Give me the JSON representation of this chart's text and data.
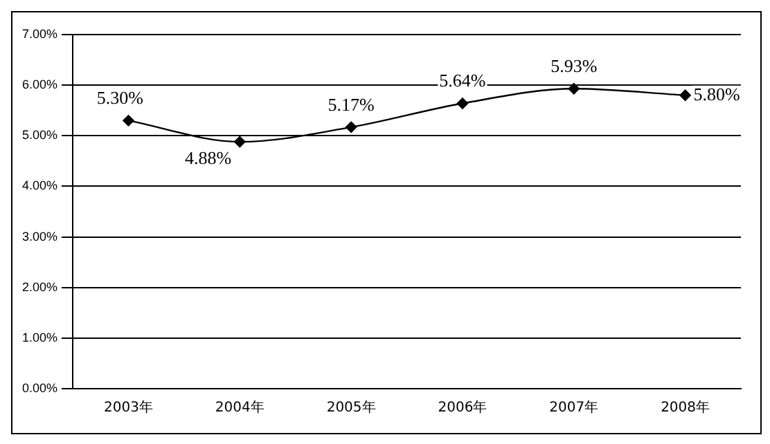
{
  "chart_data": {
    "type": "line",
    "categories": [
      "2003年",
      "2004年",
      "2005年",
      "2006年",
      "2007年",
      "2008年"
    ],
    "series": [
      {
        "color": "#000000",
        "values": [
          5.3,
          4.88,
          5.17,
          5.64,
          5.93,
          5.8
        ],
        "value_labels": [
          "5.30%",
          "4.88%",
          "5.17%",
          "5.64%",
          "5.93%",
          "5.80%"
        ]
      }
    ],
    "ylim": [
      0,
      7
    ],
    "yticks": [
      {
        "value": 0,
        "label": "0.00%"
      },
      {
        "value": 1,
        "label": "1.00%"
      },
      {
        "value": 2,
        "label": "2.00%"
      },
      {
        "value": 3,
        "label": "3.00%"
      },
      {
        "value": 4,
        "label": "4.00%"
      },
      {
        "value": 5,
        "label": "5.00%"
      },
      {
        "value": 6,
        "label": "6.00%"
      },
      {
        "value": 7,
        "label": "7.00%"
      }
    ],
    "grid": "y",
    "marker": "diamond",
    "line_style": "solid",
    "legend": false
  }
}
